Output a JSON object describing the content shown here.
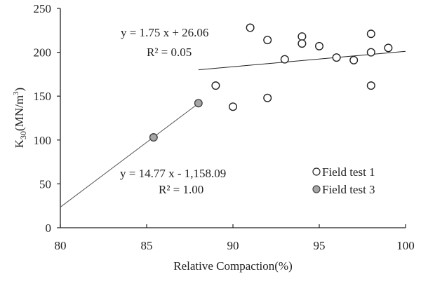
{
  "chart_data": {
    "type": "scatter",
    "title": "",
    "xlabel": "Relative Compaction(%)",
    "ylabel_main": "K",
    "ylabel_sub": "30",
    "ylabel_rest": "(MN/m",
    "ylabel_sup": "3",
    "ylabel_end": ")",
    "xlim": [
      80,
      100
    ],
    "ylim": [
      0,
      250
    ],
    "xticks": [
      80,
      85,
      90,
      95,
      100
    ],
    "yticks": [
      0,
      50,
      100,
      150,
      200,
      250
    ],
    "grid": false,
    "legend_position": "lower right",
    "series": [
      {
        "name": "Field test 1",
        "marker": "open-circle",
        "fill": "#ffffff",
        "points": [
          [
            89,
            162
          ],
          [
            90,
            138
          ],
          [
            91,
            228
          ],
          [
            92,
            214
          ],
          [
            92,
            148
          ],
          [
            93,
            192
          ],
          [
            94,
            218
          ],
          [
            94,
            210
          ],
          [
            95,
            207
          ],
          [
            96,
            194
          ],
          [
            97,
            191
          ],
          [
            98,
            221
          ],
          [
            98,
            200
          ],
          [
            98,
            162
          ],
          [
            99,
            205
          ]
        ],
        "trendline": {
          "slope": 1.75,
          "intercept": 26.06,
          "x_range": [
            88,
            100
          ],
          "equation": "y = 1.75 x + 26.06",
          "r2": "R² = 0.05"
        }
      },
      {
        "name": "Field test 3",
        "marker": "filled-circle",
        "fill": "#a6a6a6",
        "points": [
          [
            85.4,
            103
          ],
          [
            88,
            142
          ]
        ],
        "trendline": {
          "slope": 14.77,
          "intercept": -1158.09,
          "x_range": [
            80,
            88
          ],
          "equation": "y = 14.77 x - 1,158.09",
          "r2": "R² = 1.00"
        }
      }
    ]
  }
}
